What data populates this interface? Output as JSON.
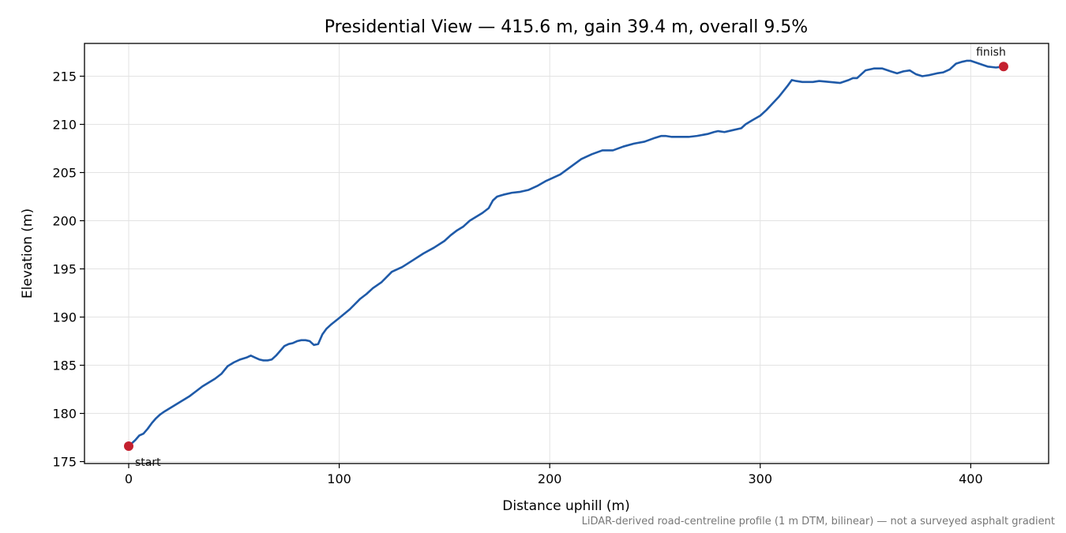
{
  "chart_data": {
    "type": "line",
    "title": "Presidential View — 415.6 m, gain 39.4 m, overall 9.5%",
    "xlabel": "Distance uphill (m)",
    "ylabel": "Elevation (m)",
    "xlim": [
      -21,
      437
    ],
    "ylim": [
      174.8,
      218.4
    ],
    "xticks": [
      0,
      100,
      200,
      300,
      400
    ],
    "yticks": [
      175,
      180,
      185,
      190,
      195,
      200,
      205,
      210,
      215
    ],
    "grid": true,
    "note": "LiDAR-derived road-centreline profile (1 m DTM, bilinear) — not a surveyed asphalt gradient",
    "annotations": [
      {
        "label": "start",
        "x": 0,
        "y": 176.6
      },
      {
        "label": "finish",
        "x": 415.6,
        "y": 216.0
      }
    ],
    "series": [
      {
        "color": "#1f5aa8",
        "x": [
          0,
          3,
          5,
          7,
          9,
          11,
          13,
          15,
          17,
          20,
          23,
          26,
          29,
          32,
          35,
          38,
          41,
          44,
          47,
          50,
          53,
          56,
          58,
          60,
          62,
          64,
          66,
          68,
          70,
          72,
          74,
          76,
          78,
          80,
          82,
          84,
          86,
          88,
          90,
          92,
          94,
          96,
          100,
          105,
          110,
          113,
          116,
          120,
          125,
          130,
          135,
          140,
          145,
          150,
          153,
          156,
          159,
          162,
          165,
          168,
          171,
          173,
          175,
          178,
          182,
          186,
          190,
          194,
          198,
          200,
          205,
          210,
          215,
          220,
          225,
          230,
          235,
          240,
          245,
          250,
          253,
          255,
          258,
          262,
          266,
          270,
          275,
          278,
          280,
          283,
          287,
          291,
          293,
          296,
          300,
          303,
          306,
          309,
          313,
          315,
          317,
          320,
          325,
          328,
          333,
          338,
          342,
          344,
          346,
          350,
          354,
          358,
          362,
          365,
          368,
          371,
          374,
          377,
          380,
          384,
          387,
          390,
          393,
          396,
          398,
          400,
          404,
          408,
          412,
          415.6
        ],
        "y": [
          176.6,
          177.2,
          177.7,
          177.9,
          178.4,
          179.0,
          179.5,
          179.9,
          180.2,
          180.6,
          181.0,
          181.4,
          181.8,
          182.3,
          182.8,
          183.2,
          183.6,
          184.1,
          184.9,
          185.3,
          185.6,
          185.8,
          186.0,
          185.8,
          185.6,
          185.5,
          185.5,
          185.6,
          186.0,
          186.5,
          187.0,
          187.2,
          187.3,
          187.5,
          187.6,
          187.6,
          187.5,
          187.1,
          187.2,
          188.2,
          188.8,
          189.2,
          189.9,
          190.8,
          191.9,
          192.4,
          193.0,
          193.6,
          194.7,
          195.2,
          195.9,
          196.6,
          197.2,
          197.9,
          198.5,
          199.0,
          199.4,
          200.0,
          200.4,
          200.8,
          201.3,
          202.1,
          202.5,
          202.7,
          202.9,
          203.0,
          203.2,
          203.6,
          204.1,
          204.3,
          204.8,
          205.6,
          206.4,
          206.9,
          207.3,
          207.3,
          207.7,
          208.0,
          208.2,
          208.6,
          208.8,
          208.8,
          208.7,
          208.7,
          208.7,
          208.8,
          209.0,
          209.2,
          209.3,
          209.2,
          209.4,
          209.6,
          210.0,
          210.4,
          210.9,
          211.5,
          212.2,
          212.9,
          214.0,
          214.6,
          214.5,
          214.4,
          214.4,
          214.5,
          214.4,
          214.3,
          214.6,
          214.8,
          214.8,
          215.6,
          215.8,
          215.8,
          215.5,
          215.3,
          215.5,
          215.6,
          215.2,
          215.0,
          215.1,
          215.3,
          215.4,
          215.7,
          216.3,
          216.5,
          216.6,
          216.6,
          216.3,
          216.0,
          215.9,
          216.0
        ]
      }
    ]
  }
}
